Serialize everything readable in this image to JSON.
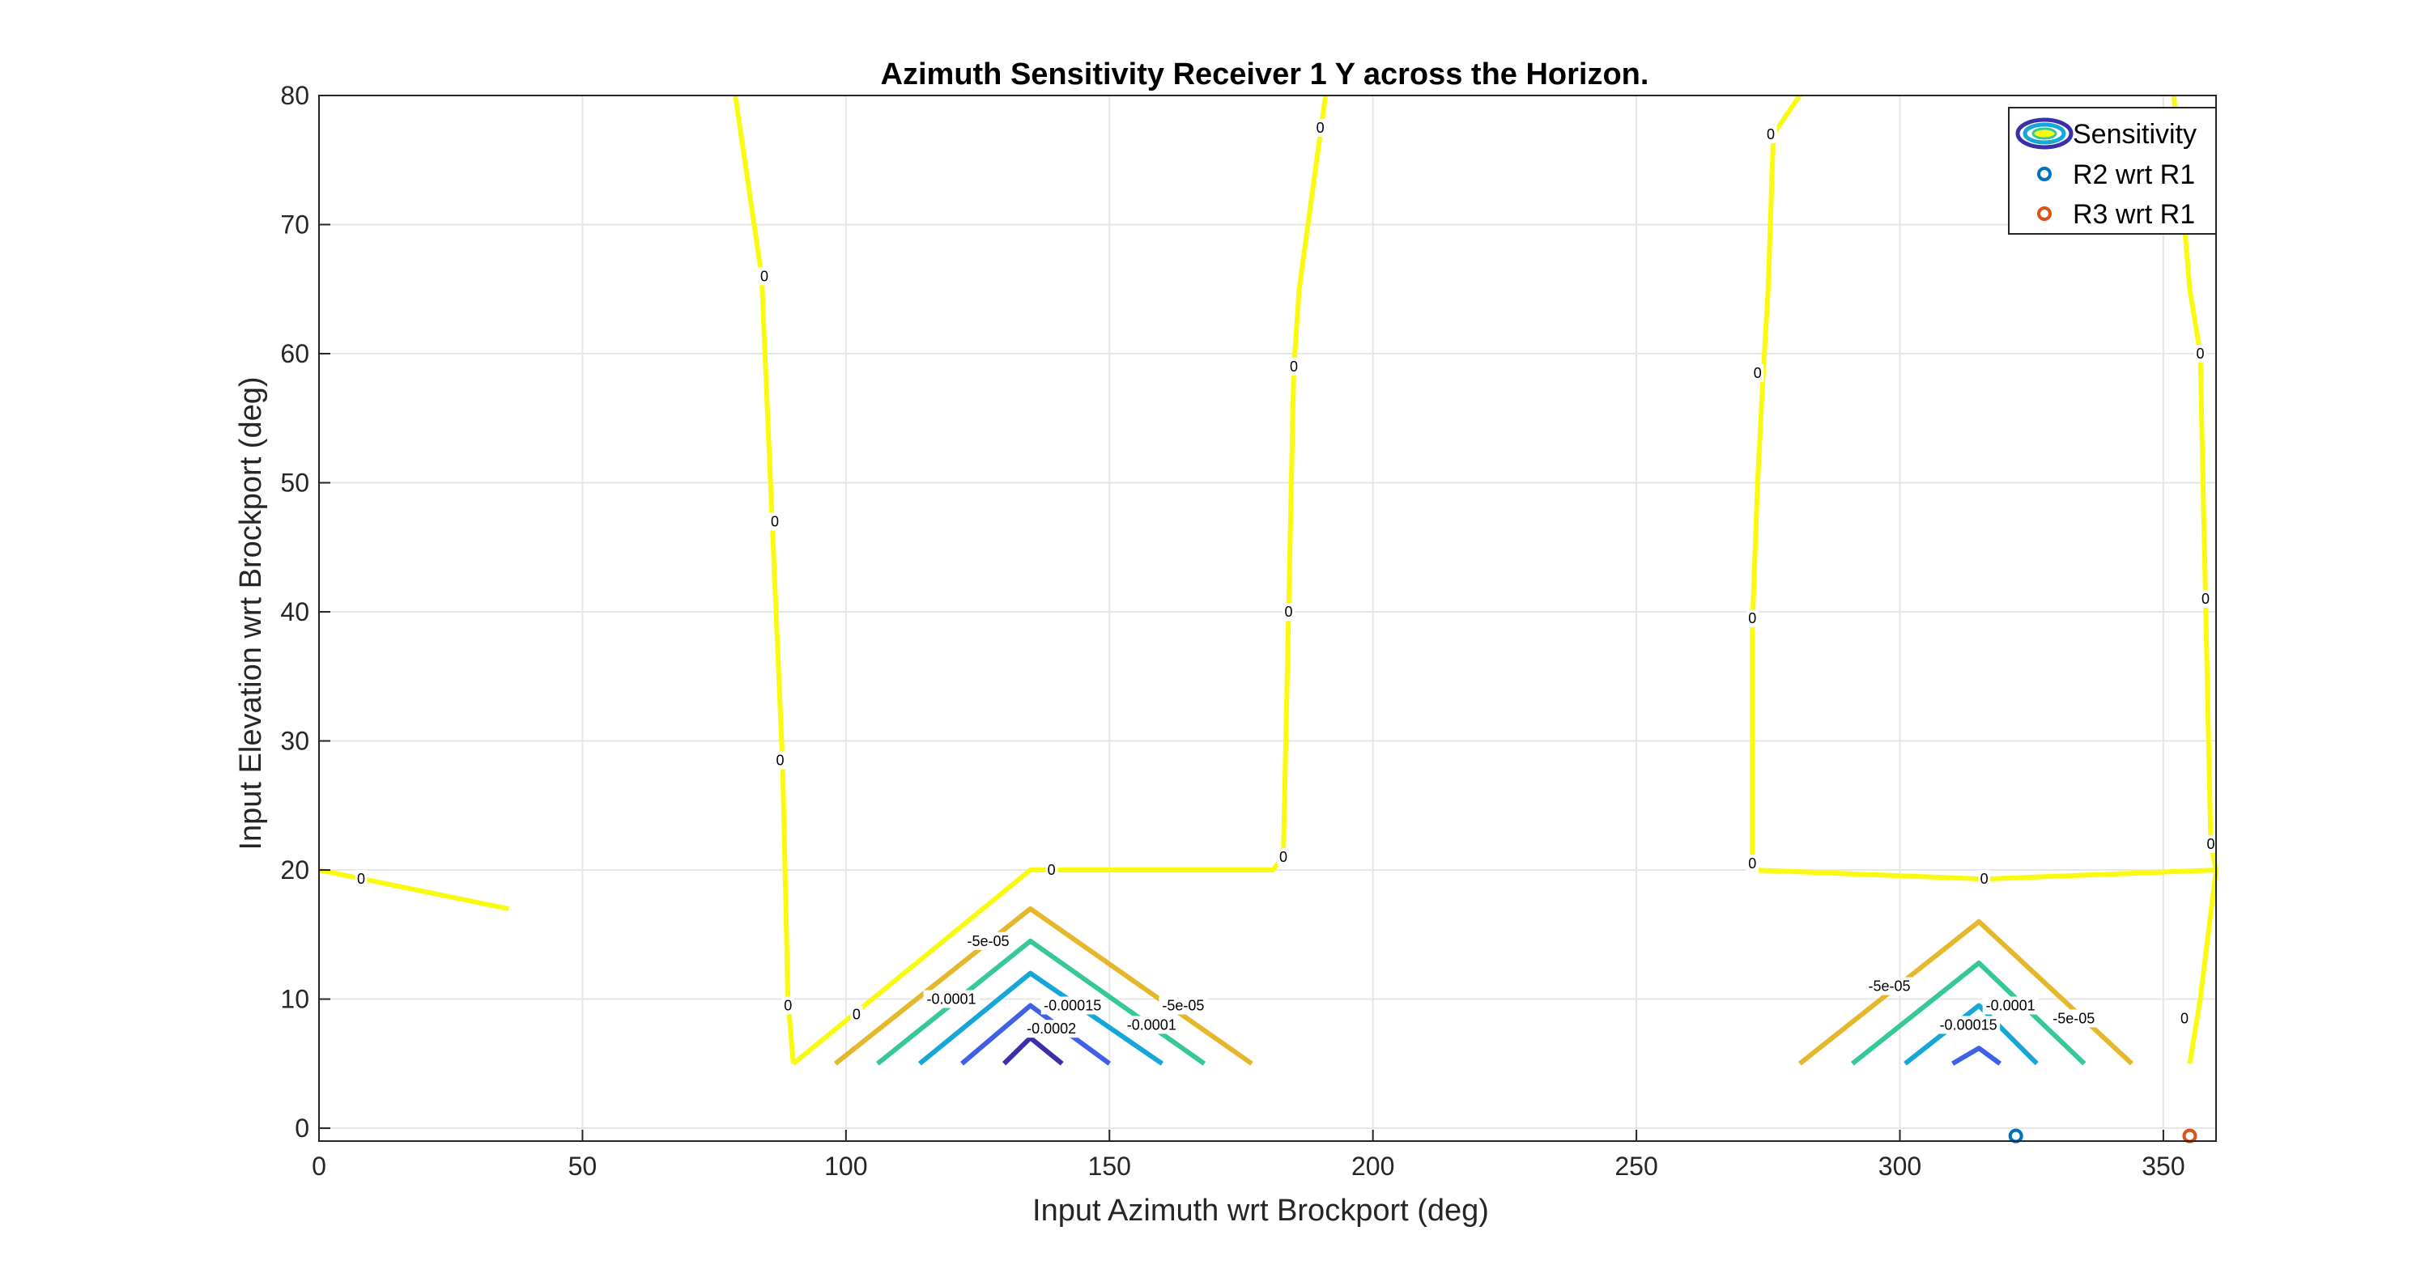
{
  "chart_data": {
    "type": "contour",
    "title": "Azimuth Sensitivity Receiver 1 Y across the Horizon.",
    "xlabel": "Input Azimuth wrt Brockport (deg)",
    "ylabel": "Input Elevation wrt Brockport (deg)",
    "xlim": [
      0,
      360
    ],
    "ylim": [
      -1,
      80
    ],
    "xticks": [
      "0",
      "50",
      "100",
      "150",
      "200",
      "250",
      "300",
      "350"
    ],
    "xtick_values": [
      0,
      50,
      100,
      150,
      200,
      250,
      300,
      350
    ],
    "yticks": [
      "0",
      "10",
      "20",
      "30",
      "40",
      "50",
      "60",
      "70",
      "80"
    ],
    "ytick_values": [
      0,
      10,
      20,
      30,
      40,
      50,
      60,
      70,
      80
    ],
    "grid": true,
    "legend": {
      "position": "top-right",
      "entries": [
        {
          "label": "Sensitivity",
          "marker": "contour"
        },
        {
          "label": "R2 wrt R1",
          "marker": "circle",
          "color": "#0072BD"
        },
        {
          "label": "R3 wrt R1",
          "marker": "circle",
          "color": "#D95319"
        }
      ]
    },
    "contour_levels": [
      {
        "level": 0,
        "label": "0",
        "color": "#F9FB0E",
        "segments": [
          [
            [
              0,
              20
            ],
            [
              36,
              17
            ]
          ],
          [
            [
              79,
              80
            ],
            [
              84,
              66
            ],
            [
              86,
              47
            ],
            [
              88,
              28
            ],
            [
              89,
              10
            ],
            [
              90,
              5
            ]
          ],
          [
            [
              90,
              5
            ],
            [
              135,
              20
            ],
            [
              181,
              20
            ],
            [
              183,
              21
            ],
            [
              184,
              40
            ],
            [
              185,
              59
            ],
            [
              186,
              65
            ],
            [
              191,
              80
            ]
          ],
          [
            [
              281,
              80
            ],
            [
              276,
              77
            ],
            [
              275,
              65
            ],
            [
              274,
              58
            ],
            [
              273,
              50
            ],
            [
              272,
              39
            ],
            [
              272,
              20
            ],
            [
              316,
              19.3
            ],
            [
              360,
              20
            ],
            [
              359,
              22
            ],
            [
              358,
              41
            ],
            [
              357,
              60
            ],
            [
              355,
              65
            ],
            [
              352,
              80
            ]
          ],
          [
            [
              360,
              20
            ],
            [
              357,
              10
            ],
            [
              355,
              5
            ]
          ]
        ]
      },
      {
        "level": -5e-05,
        "label": "-5e-05",
        "color": "#E5B72A",
        "segments": [
          [
            [
              98,
              5
            ],
            [
              135,
              17
            ],
            [
              177,
              5
            ]
          ],
          [
            [
              281,
              5
            ],
            [
              315,
              16
            ],
            [
              344,
              5
            ]
          ]
        ]
      },
      {
        "level": -0.0001,
        "label": "-0.0001",
        "color": "#36C89A",
        "segments": [
          [
            [
              106,
              5
            ],
            [
              135,
              14.5
            ],
            [
              168,
              5
            ]
          ],
          [
            [
              291,
              5
            ],
            [
              315,
              12.8
            ],
            [
              335,
              5
            ]
          ]
        ]
      },
      {
        "level": -0.00015,
        "label": "-0.00015",
        "color": "#16A7D8",
        "segments": [
          [
            [
              114,
              5
            ],
            [
              135,
              12
            ],
            [
              160,
              5
            ]
          ],
          [
            [
              301,
              5
            ],
            [
              315,
              9.5
            ],
            [
              326,
              5
            ]
          ]
        ]
      },
      {
        "level": -0.0002,
        "label": "-0.0002",
        "color": "#4060E8",
        "segments": [
          [
            [
              122,
              5
            ],
            [
              135,
              9.5
            ],
            [
              150,
              5
            ]
          ],
          [
            [
              310,
              5
            ],
            [
              315,
              6.2
            ],
            [
              319,
              5
            ]
          ]
        ]
      },
      {
        "level": -0.00025,
        "label": "",
        "color": "#3A2FA8",
        "segments": [
          [
            [
              130,
              5
            ],
            [
              135,
              7
            ],
            [
              141,
              5
            ]
          ]
        ]
      }
    ],
    "contour_labels": [
      {
        "text": "0",
        "x": 8,
        "y": 19.3
      },
      {
        "text": "0",
        "x": 84.5,
        "y": 66
      },
      {
        "text": "0",
        "x": 86.5,
        "y": 47
      },
      {
        "text": "0",
        "x": 87.5,
        "y": 28.5
      },
      {
        "text": "0",
        "x": 89,
        "y": 9.5
      },
      {
        "text": "0",
        "x": 102,
        "y": 8.8
      },
      {
        "text": "0",
        "x": 139,
        "y": 20
      },
      {
        "text": "0",
        "x": 183,
        "y": 21
      },
      {
        "text": "0",
        "x": 184,
        "y": 40
      },
      {
        "text": "0",
        "x": 185,
        "y": 59
      },
      {
        "text": "0",
        "x": 190,
        "y": 77.5
      },
      {
        "text": "0",
        "x": 272,
        "y": 20.5
      },
      {
        "text": "0",
        "x": 272,
        "y": 39.5
      },
      {
        "text": "0",
        "x": 273,
        "y": 58.5
      },
      {
        "text": "0",
        "x": 275.5,
        "y": 77
      },
      {
        "text": "0",
        "x": 316,
        "y": 19.3
      },
      {
        "text": "0",
        "x": 354,
        "y": 8.5
      },
      {
        "text": "0",
        "x": 357,
        "y": 60
      },
      {
        "text": "0",
        "x": 358,
        "y": 41
      },
      {
        "text": "0",
        "x": 359,
        "y": 22
      },
      {
        "text": "-5e-05",
        "x": 127,
        "y": 14.5
      },
      {
        "text": "-5e-05",
        "x": 164,
        "y": 9.5
      },
      {
        "text": "-0.0001",
        "x": 120,
        "y": 10
      },
      {
        "text": "-0.0001",
        "x": 158,
        "y": 8
      },
      {
        "text": "-0.00015",
        "x": 143,
        "y": 9.5
      },
      {
        "text": "-0.0002",
        "x": 139,
        "y": 7.7
      },
      {
        "text": "-5e-05",
        "x": 298,
        "y": 11
      },
      {
        "text": "-5e-05",
        "x": 333,
        "y": 8.5
      },
      {
        "text": "-0.0001",
        "x": 321,
        "y": 9.5
      },
      {
        "text": "-0.00015",
        "x": 313,
        "y": 8
      }
    ],
    "points": [
      {
        "name": "R2 wrt R1",
        "x": 322,
        "y": -0.6,
        "color": "#0072BD"
      },
      {
        "name": "R3 wrt R1",
        "x": 355,
        "y": -0.6,
        "color": "#D95319"
      }
    ]
  }
}
